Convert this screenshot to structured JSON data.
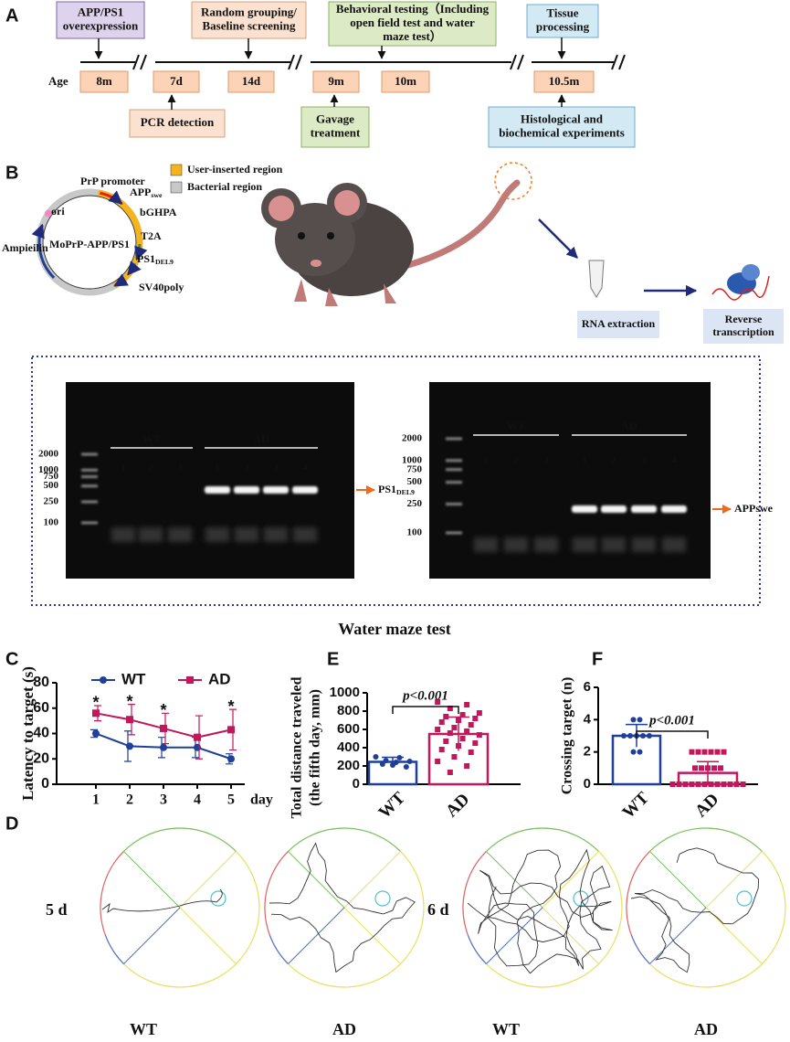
{
  "panel_labels": [
    "A",
    "B",
    "C",
    "D",
    "E",
    "F"
  ],
  "timeline": {
    "top": [
      {
        "lines": [
          "APP/PS1",
          "overexpression"
        ]
      },
      {
        "lines": [
          "Random grouping/",
          "Baseline screening"
        ]
      },
      {
        "lines": [
          "Behavioral testing（Including",
          "open field test and water",
          "maze test）"
        ]
      },
      {
        "lines": [
          "Tissue",
          "processing"
        ]
      }
    ],
    "age_label": "Age",
    "ages": [
      "8m",
      "7d",
      "14d",
      "9m",
      "10m",
      "10.5m"
    ],
    "bottom": [
      {
        "lines": [
          "PCR detection"
        ]
      },
      {
        "lines": [
          "Gavage",
          "treatment"
        ]
      },
      {
        "lines": [
          "Histological and",
          "biochemical experiments"
        ]
      }
    ]
  },
  "plasmid": {
    "name": "MoPrP-APP/PS1",
    "features": [
      "PrP promoter",
      {
        "main": "APP",
        "sub": "swe"
      },
      "bGHPA",
      "T2A",
      {
        "main": "PS1",
        "sub": "DEL9"
      },
      "SV40poly",
      "ori",
      "Ampieilin"
    ],
    "legend": [
      "User-inserted region",
      "Bacterial region"
    ]
  },
  "workflow": {
    "steps": [
      {
        "lines": [
          "RNA extraction"
        ]
      },
      {
        "lines": [
          "Reverse",
          "transcription"
        ]
      }
    ]
  },
  "gels": [
    {
      "ladder": [
        2000,
        1000,
        750,
        500,
        250,
        100
      ],
      "groups": [
        {
          "name": "WT",
          "lanes": [
            "1",
            "2",
            "3"
          ]
        },
        {
          "name": "AD",
          "lanes": [
            "1",
            "2",
            "3",
            "4"
          ]
        }
      ],
      "band": {
        "main": "PS1",
        "sub": "DEL9"
      }
    },
    {
      "ladder": [
        2000,
        1000,
        750,
        500,
        250,
        100
      ],
      "groups": [
        {
          "name": "WT",
          "lanes": [
            "1",
            "2",
            "3"
          ]
        },
        {
          "name": "AD",
          "lanes": [
            "1",
            "2",
            "3",
            "4"
          ]
        }
      ],
      "band": "APPswe"
    }
  ],
  "section_title": "Water maze test",
  "chart_data": [
    {
      "type": "line",
      "ylabel": "Latency to target (s)",
      "xlabel": "day",
      "categories": [
        "1",
        "2",
        "3",
        "4",
        "5"
      ],
      "series": [
        {
          "name": "WT",
          "color": "#1f3f99",
          "marker": "circle",
          "values": [
            40,
            30,
            29,
            29,
            20
          ],
          "errors": [
            3,
            12,
            8,
            8,
            4
          ]
        },
        {
          "name": "AD",
          "color": "#c0185a",
          "marker": "square",
          "values": [
            56,
            51,
            44,
            37,
            43
          ],
          "errors": [
            6,
            12,
            12,
            17,
            16
          ]
        }
      ],
      "significance": [
        "*",
        "*",
        "*",
        null,
        "*"
      ],
      "ylim": [
        0,
        80
      ],
      "yticks": [
        0,
        20,
        40,
        60,
        80
      ],
      "legend": "top"
    },
    {
      "type": "bar",
      "ylabel": [
        "Total distance traveled",
        "(the fifth day, mm)"
      ],
      "categories": [
        "WT",
        "AD"
      ],
      "values": [
        245,
        550
      ],
      "errors": [
        50,
        185
      ],
      "points": [
        [
          300,
          290,
          260,
          250,
          240,
          220,
          190,
          210
        ],
        [
          900,
          870,
          830,
          780,
          760,
          740,
          720,
          700,
          680,
          650,
          620,
          600,
          580,
          560,
          540,
          500,
          470,
          450,
          420,
          380,
          350,
          300,
          250,
          200,
          130
        ]
      ],
      "colors": [
        "#1f3f99",
        "#c0185a"
      ],
      "markers": [
        "circle",
        "square"
      ],
      "ylim": [
        0,
        1000
      ],
      "yticks": [
        0,
        200,
        400,
        600,
        800,
        1000
      ],
      "annotation": "p<0.001"
    },
    {
      "type": "bar",
      "ylabel": "Crossing target (n)",
      "categories": [
        "WT",
        "AD"
      ],
      "values": [
        3,
        0.7
      ],
      "errors": [
        0.7,
        0.7
      ],
      "points": [
        [
          4,
          4,
          3,
          3,
          3,
          3,
          3,
          2,
          2
        ],
        [
          2,
          2,
          2,
          2,
          2,
          2,
          1,
          1,
          1,
          1,
          1,
          0,
          0,
          0,
          0,
          0,
          0,
          0,
          0,
          0,
          0,
          0,
          0
        ]
      ],
      "colors": [
        "#1f3f99",
        "#c0185a"
      ],
      "markers": [
        "circle",
        "square"
      ],
      "ylim": [
        0,
        6
      ],
      "yticks": [
        0,
        2,
        4,
        6
      ],
      "annotation": "p<0.001"
    }
  ],
  "maze_traces": {
    "day_labels": [
      "5 d",
      "6 d"
    ],
    "group_labels": [
      "WT",
      "AD",
      "WT",
      "AD"
    ]
  }
}
